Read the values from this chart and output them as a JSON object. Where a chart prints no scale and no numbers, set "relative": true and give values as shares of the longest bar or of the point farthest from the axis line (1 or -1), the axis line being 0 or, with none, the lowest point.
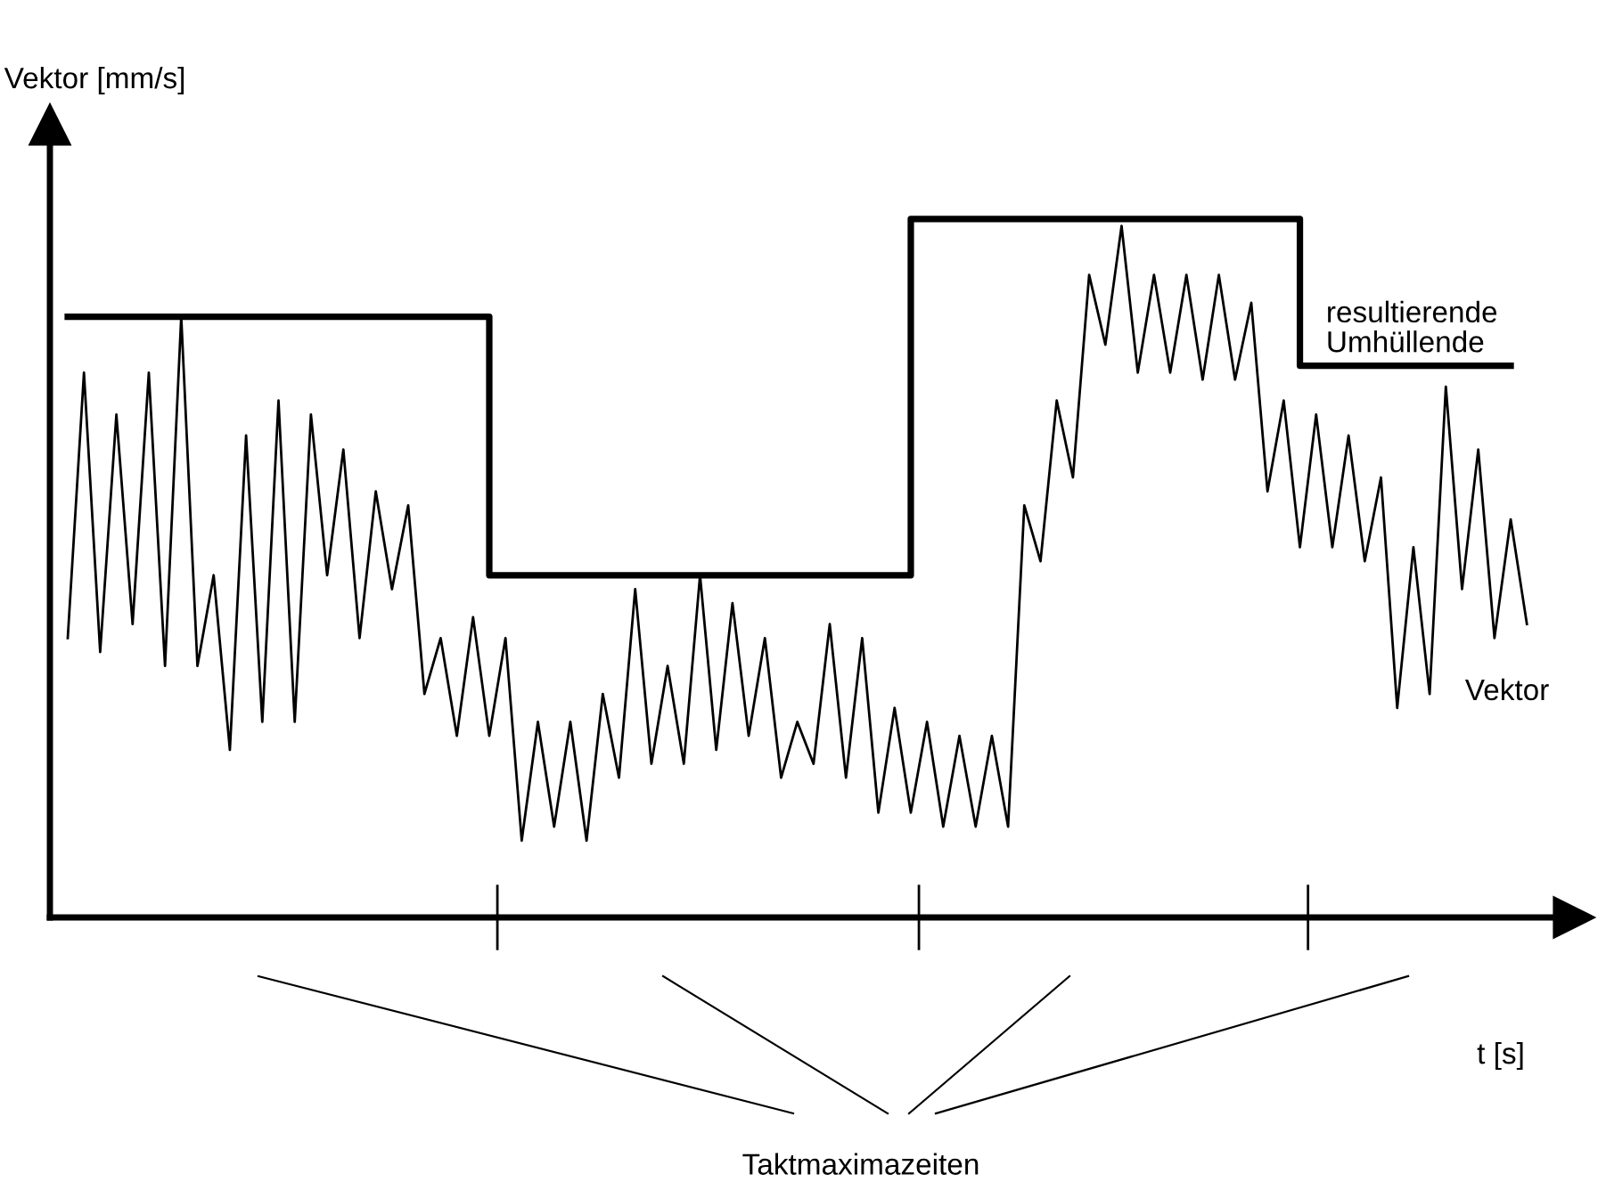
{
  "chart_data": {
    "type": "line",
    "relative": true,
    "ylabel": "Vektor [mm/s]",
    "xlabel": "t [s]",
    "categories": [
      null,
      null,
      null,
      null,
      null,
      null,
      null,
      null,
      null,
      null,
      null,
      null,
      null,
      null,
      null,
      null,
      null,
      null,
      null,
      null,
      null,
      null,
      null,
      null,
      null,
      null,
      null,
      null,
      null,
      null,
      null,
      null,
      null,
      null,
      null,
      null,
      null,
      null,
      null,
      null,
      null,
      null,
      null,
      null,
      null,
      null,
      null,
      null,
      null,
      null,
      null,
      null,
      null,
      null,
      null,
      null,
      null,
      null,
      null,
      null,
      null,
      null,
      null,
      null,
      null,
      null,
      null,
      null,
      null,
      null,
      null,
      null,
      null,
      null,
      null,
      null,
      null,
      null,
      null,
      null,
      null,
      null,
      null,
      null,
      null,
      null,
      null,
      null,
      null,
      null,
      null
    ],
    "annotations": [
      "Taktmaximazeiten"
    ],
    "series": [
      {
        "name": "resultierende Umhüllende",
        "type": "step",
        "color": "#000000",
        "values": [
          0.86,
          0.86,
          0.86,
          0.86,
          0.86,
          0.86,
          0.86,
          0.86,
          0.86,
          0.86,
          0.86,
          0.86,
          0.86,
          0.86,
          0.86,
          0.86,
          0.86,
          0.86,
          0.86,
          0.86,
          0.86,
          0.86,
          0.86,
          0.86,
          0.86,
          0.86,
          0.86,
          0.49,
          0.49,
          0.49,
          0.49,
          0.49,
          0.49,
          0.49,
          0.49,
          0.49,
          0.49,
          0.49,
          0.49,
          0.49,
          0.49,
          0.49,
          0.49,
          0.49,
          0.49,
          0.49,
          0.49,
          0.49,
          0.49,
          0.49,
          0.49,
          0.49,
          0.49,
          1.0,
          1.0,
          1.0,
          1.0,
          1.0,
          1.0,
          1.0,
          1.0,
          1.0,
          1.0,
          1.0,
          1.0,
          1.0,
          1.0,
          1.0,
          1.0,
          1.0,
          1.0,
          1.0,
          1.0,
          1.0,
          1.0,
          1.0,
          1.0,
          0.79,
          0.79,
          0.79,
          0.79,
          0.79,
          0.79,
          0.79,
          0.79,
          0.79,
          0.79,
          0.79,
          0.79,
          0.79,
          null
        ]
      },
      {
        "name": "Vektor",
        "color": "#000000",
        "values": [
          0.4,
          0.78,
          0.38,
          0.72,
          0.42,
          0.78,
          0.36,
          0.86,
          0.36,
          0.49,
          0.24,
          0.69,
          0.28,
          0.74,
          0.28,
          0.72,
          0.49,
          0.67,
          0.4,
          0.61,
          0.47,
          0.59,
          0.32,
          0.4,
          0.26,
          0.43,
          0.26,
          0.4,
          0.11,
          0.28,
          0.13,
          0.28,
          0.11,
          0.32,
          0.2,
          0.47,
          0.22,
          0.36,
          0.22,
          0.49,
          0.24,
          0.45,
          0.26,
          0.4,
          0.2,
          0.28,
          0.22,
          0.42,
          0.2,
          0.4,
          0.15,
          0.3,
          0.15,
          0.28,
          0.13,
          0.26,
          0.13,
          0.26,
          0.13,
          0.59,
          0.51,
          0.74,
          0.63,
          0.92,
          0.82,
          0.99,
          0.78,
          0.92,
          0.78,
          0.92,
          0.77,
          0.92,
          0.77,
          0.88,
          0.61,
          0.74,
          0.53,
          0.72,
          0.53,
          0.69,
          0.51,
          0.63,
          0.3,
          0.53,
          0.32,
          0.76,
          0.47,
          0.67,
          0.4,
          0.57,
          0.42
        ]
      }
    ]
  }
}
